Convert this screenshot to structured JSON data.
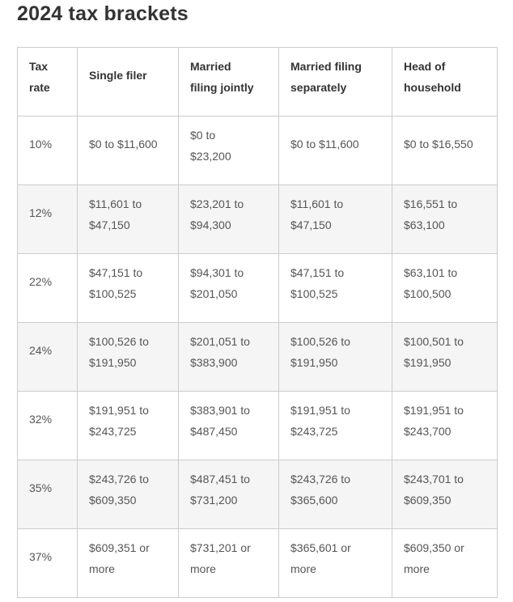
{
  "page": {
    "title": "2024 tax brackets"
  },
  "table": {
    "headers": [
      {
        "line1": "Tax",
        "line2": "rate"
      },
      {
        "line1": "Single filer",
        "line2": ""
      },
      {
        "line1": "Married",
        "line2": "filing jointly"
      },
      {
        "line1": "Married filing",
        "line2": "separately"
      },
      {
        "line1": "Head of",
        "line2": "household"
      }
    ],
    "rows": [
      {
        "rate": "10%",
        "single": {
          "line1": "$0 to $11,600",
          "line2": ""
        },
        "joint": {
          "line1": "$0 to",
          "line2": "$23,200"
        },
        "separate": {
          "line1": "$0 to $11,600",
          "line2": ""
        },
        "head": {
          "line1": "$0 to $16,550",
          "line2": ""
        }
      },
      {
        "rate": "12%",
        "single": {
          "line1": "$11,601 to",
          "line2": "$47,150"
        },
        "joint": {
          "line1": "$23,201 to",
          "line2": "$94,300"
        },
        "separate": {
          "line1": "$11,601 to",
          "line2": "$47,150"
        },
        "head": {
          "line1": "$16,551 to",
          "line2": "$63,100"
        }
      },
      {
        "rate": "22%",
        "single": {
          "line1": "$47,151 to",
          "line2": "$100,525"
        },
        "joint": {
          "line1": "$94,301 to",
          "line2": "$201,050"
        },
        "separate": {
          "line1": "$47,151 to",
          "line2": "$100,525"
        },
        "head": {
          "line1": "$63,101 to",
          "line2": "$100,500"
        }
      },
      {
        "rate": "24%",
        "single": {
          "line1": "$100,526 to",
          "line2": "$191,950"
        },
        "joint": {
          "line1": "$201,051 to",
          "line2": "$383,900"
        },
        "separate": {
          "line1": "$100,526 to",
          "line2": "$191,950"
        },
        "head": {
          "line1": "$100,501 to",
          "line2": "$191,950"
        }
      },
      {
        "rate": "32%",
        "single": {
          "line1": "$191,951 to",
          "line2": "$243,725"
        },
        "joint": {
          "line1": "$383,901 to",
          "line2": "$487,450"
        },
        "separate": {
          "line1": "$191,951 to",
          "line2": "$243,725"
        },
        "head": {
          "line1": "$191,951 to",
          "line2": "$243,700"
        }
      },
      {
        "rate": "35%",
        "single": {
          "line1": "$243,726 to",
          "line2": "$609,350"
        },
        "joint": {
          "line1": "$487,451 to",
          "line2": "$731,200"
        },
        "separate": {
          "line1": "$243,726 to",
          "line2": "$365,600"
        },
        "head": {
          "line1": "$243,701 to",
          "line2": "$609,350"
        }
      },
      {
        "rate": "37%",
        "single": {
          "line1": "$609,351 or",
          "line2": "more"
        },
        "joint": {
          "line1": "$731,201 or",
          "line2": "more"
        },
        "separate": {
          "line1": "$365,601 or",
          "line2": "more"
        },
        "head": {
          "line1": "$609,350 or",
          "line2": "more"
        }
      }
    ]
  },
  "colors": {
    "text_heading": "#333333",
    "text_body": "#555555",
    "border": "#cccccc",
    "row_shade": "#f5f5f5",
    "background": "#ffffff"
  }
}
